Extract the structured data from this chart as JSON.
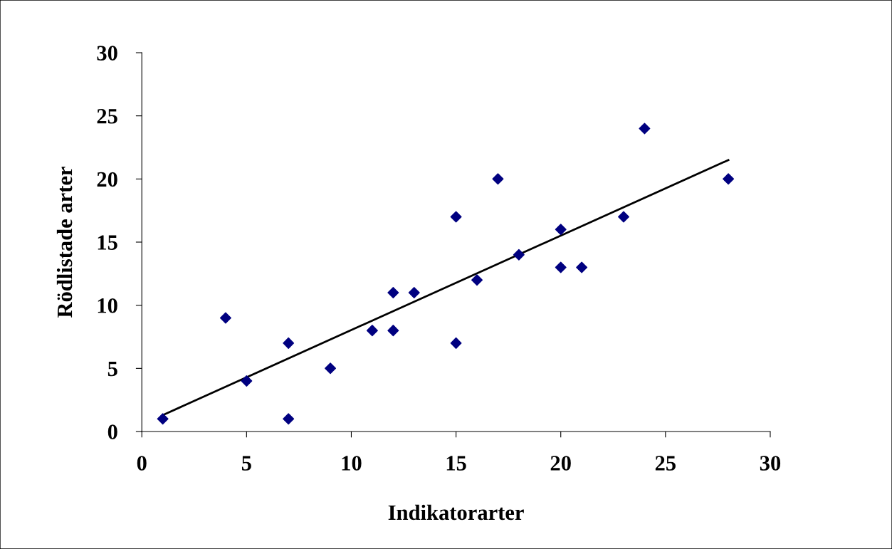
{
  "chart_data": {
    "type": "scatter",
    "xlabel": "Indikatorarter",
    "ylabel": "Rödlistade arter",
    "xlim": [
      0,
      30
    ],
    "ylim": [
      0,
      30
    ],
    "xticks": [
      0,
      5,
      10,
      15,
      20,
      25,
      30
    ],
    "yticks": [
      0,
      5,
      10,
      15,
      20,
      25,
      30
    ],
    "grid": false,
    "series": [
      {
        "color": "#000080",
        "marker": "diamond",
        "x": [
          1,
          4,
          5,
          7,
          7,
          9,
          11,
          12,
          12,
          13,
          15,
          15,
          16,
          17,
          18,
          20,
          20,
          21,
          23,
          24,
          28
        ],
        "values": [
          1,
          9,
          4,
          7,
          1,
          5,
          8,
          11,
          8,
          11,
          17,
          7,
          12,
          20,
          14,
          16,
          13,
          13,
          17,
          24,
          20
        ]
      },
      {
        "type": "line",
        "color": "#000000",
        "x": [
          1,
          28
        ],
        "values": [
          1.3,
          21.5
        ]
      }
    ]
  }
}
